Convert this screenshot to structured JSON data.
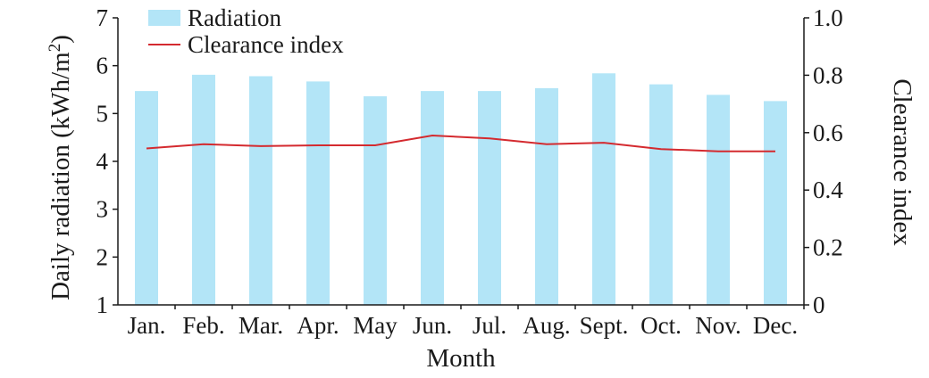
{
  "chart_data": {
    "type": "bar",
    "categories": [
      "Jan.",
      "Feb.",
      "Mar.",
      "Apr.",
      "May",
      "Jun.",
      "Jul.",
      "Aug.",
      "Sept.",
      "Oct.",
      "Nov.",
      "Dec."
    ],
    "series": [
      {
        "name": "Radiation",
        "type": "bar",
        "axis": "left",
        "color": "#b3e5f7",
        "values": [
          5.47,
          5.81,
          5.78,
          5.67,
          5.36,
          5.47,
          5.47,
          5.53,
          5.84,
          5.61,
          5.39,
          5.26
        ]
      },
      {
        "name": "Clearance index",
        "type": "line",
        "axis": "right",
        "color": "#d42a2f",
        "values": [
          0.545,
          0.56,
          0.553,
          0.556,
          0.556,
          0.59,
          0.58,
          0.56,
          0.565,
          0.543,
          0.535,
          0.535
        ]
      }
    ],
    "xlabel": "Month",
    "ylabel_left": "Daily radiation (kWh/m",
    "ylabel_left_sup": "2",
    "ylabel_left_close": ")",
    "ylabel_right": "Clearance index",
    "ylim_left": [
      1,
      7
    ],
    "ylim_right": [
      0,
      1.0
    ],
    "yticks_left": [
      "1",
      "2",
      "3",
      "4",
      "5",
      "6",
      "7"
    ],
    "yticks_right": [
      "0",
      "0.2",
      "0.4",
      "0.6",
      "0.8",
      "1.0"
    ],
    "grid": false,
    "legend_position": "top-left"
  }
}
